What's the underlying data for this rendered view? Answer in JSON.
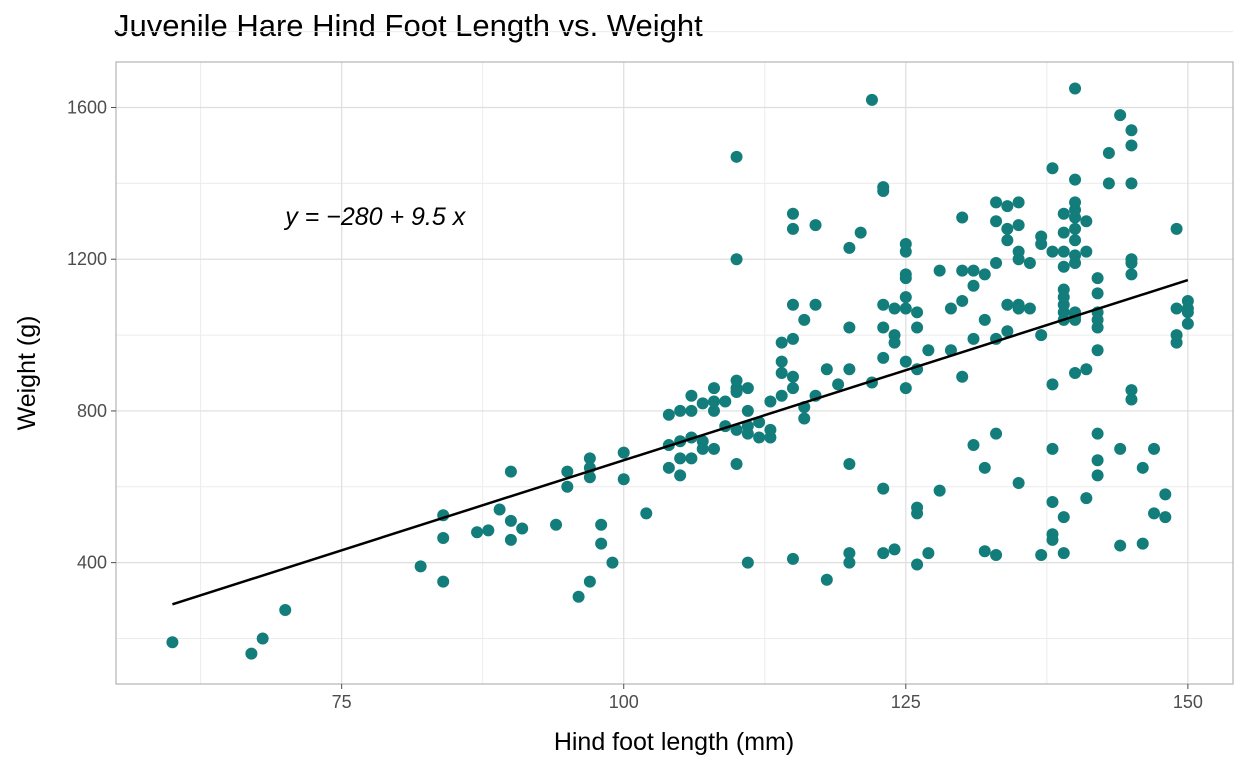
{
  "chart_data": {
    "type": "scatter",
    "title": "Juvenile Hare Hind Foot Length vs. Weight",
    "xlabel": "Hind foot length (mm)",
    "ylabel": "Weight (g)",
    "xlim": [
      55,
      154
    ],
    "ylim": [
      80,
      1720
    ],
    "xticks": [
      75,
      100,
      125,
      150
    ],
    "yticks": [
      400,
      800,
      1200,
      1600
    ],
    "xtick_labels": [
      "75",
      "100",
      "125",
      "150"
    ],
    "ytick_labels": [
      "400",
      "800",
      "1200",
      "1600"
    ],
    "grid": true,
    "point_color": "#127d7a",
    "line_color": "#000000",
    "regression": {
      "intercept": -280,
      "slope": 9.5,
      "x_range": [
        60,
        150
      ]
    },
    "annotation": {
      "text": "y = −280 + 9.5 x",
      "x": 70,
      "y": 1290
    },
    "points": [
      [
        60,
        190
      ],
      [
        67,
        160
      ],
      [
        68,
        200
      ],
      [
        70,
        275
      ],
      [
        82,
        390
      ],
      [
        84,
        350
      ],
      [
        84,
        465
      ],
      [
        84,
        525
      ],
      [
        87,
        480
      ],
      [
        88,
        485
      ],
      [
        89,
        540
      ],
      [
        90,
        460
      ],
      [
        90,
        510
      ],
      [
        90,
        640
      ],
      [
        91,
        490
      ],
      [
        94,
        500
      ],
      [
        95,
        600
      ],
      [
        95,
        640
      ],
      [
        96,
        310
      ],
      [
        97,
        350
      ],
      [
        97,
        625
      ],
      [
        97,
        650
      ],
      [
        97,
        675
      ],
      [
        98,
        450
      ],
      [
        98,
        500
      ],
      [
        99,
        400
      ],
      [
        100,
        620
      ],
      [
        100,
        690
      ],
      [
        102,
        530
      ],
      [
        104,
        650
      ],
      [
        104,
        710
      ],
      [
        104,
        790
      ],
      [
        105,
        630
      ],
      [
        105,
        675
      ],
      [
        105,
        720
      ],
      [
        105,
        800
      ],
      [
        106,
        675
      ],
      [
        106,
        730
      ],
      [
        106,
        800
      ],
      [
        106,
        840
      ],
      [
        107,
        700
      ],
      [
        107,
        720
      ],
      [
        107,
        820
      ],
      [
        108,
        700
      ],
      [
        108,
        800
      ],
      [
        108,
        825
      ],
      [
        108,
        860
      ],
      [
        109,
        760
      ],
      [
        109,
        825
      ],
      [
        110,
        660
      ],
      [
        110,
        750
      ],
      [
        110,
        850
      ],
      [
        110,
        860
      ],
      [
        110,
        880
      ],
      [
        110,
        1200
      ],
      [
        110,
        1470
      ],
      [
        111,
        400
      ],
      [
        111,
        740
      ],
      [
        111,
        760
      ],
      [
        111,
        800
      ],
      [
        111,
        860
      ],
      [
        112,
        730
      ],
      [
        112,
        770
      ],
      [
        113,
        730
      ],
      [
        113,
        750
      ],
      [
        113,
        825
      ],
      [
        114,
        840
      ],
      [
        114,
        900
      ],
      [
        114,
        930
      ],
      [
        114,
        980
      ],
      [
        115,
        410
      ],
      [
        115,
        860
      ],
      [
        115,
        890
      ],
      [
        115,
        990
      ],
      [
        115,
        1080
      ],
      [
        115,
        1280
      ],
      [
        115,
        1320
      ],
      [
        116,
        780
      ],
      [
        116,
        810
      ],
      [
        116,
        1040
      ],
      [
        117,
        840
      ],
      [
        117,
        1080
      ],
      [
        117,
        1290
      ],
      [
        118,
        355
      ],
      [
        118,
        910
      ],
      [
        119,
        870
      ],
      [
        120,
        400
      ],
      [
        120,
        425
      ],
      [
        120,
        660
      ],
      [
        120,
        910
      ],
      [
        120,
        1020
      ],
      [
        120,
        1230
      ],
      [
        121,
        1270
      ],
      [
        122,
        875
      ],
      [
        122,
        1620
      ],
      [
        123,
        425
      ],
      [
        123,
        595
      ],
      [
        123,
        940
      ],
      [
        123,
        1020
      ],
      [
        123,
        1080
      ],
      [
        123,
        1380
      ],
      [
        123,
        1390
      ],
      [
        124,
        435
      ],
      [
        124,
        980
      ],
      [
        124,
        1000
      ],
      [
        124,
        1070
      ],
      [
        125,
        860
      ],
      [
        125,
        930
      ],
      [
        125,
        1070
      ],
      [
        125,
        1100
      ],
      [
        125,
        1150
      ],
      [
        125,
        1160
      ],
      [
        125,
        1220
      ],
      [
        125,
        1240
      ],
      [
        126,
        395
      ],
      [
        126,
        530
      ],
      [
        126,
        545
      ],
      [
        126,
        910
      ],
      [
        126,
        1020
      ],
      [
        126,
        1060
      ],
      [
        127,
        425
      ],
      [
        127,
        960
      ],
      [
        128,
        590
      ],
      [
        128,
        1170
      ],
      [
        129,
        960
      ],
      [
        129,
        1070
      ],
      [
        130,
        890
      ],
      [
        130,
        1090
      ],
      [
        130,
        1170
      ],
      [
        130,
        1310
      ],
      [
        131,
        710
      ],
      [
        131,
        990
      ],
      [
        131,
        1130
      ],
      [
        131,
        1170
      ],
      [
        132,
        430
      ],
      [
        132,
        650
      ],
      [
        132,
        1040
      ],
      [
        132,
        1160
      ],
      [
        133,
        420
      ],
      [
        133,
        740
      ],
      [
        133,
        990
      ],
      [
        133,
        1190
      ],
      [
        133,
        1300
      ],
      [
        133,
        1350
      ],
      [
        134,
        1010
      ],
      [
        134,
        1080
      ],
      [
        134,
        1250
      ],
      [
        134,
        1280
      ],
      [
        134,
        1340
      ],
      [
        135,
        610
      ],
      [
        135,
        1070
      ],
      [
        135,
        1080
      ],
      [
        135,
        1200
      ],
      [
        135,
        1220
      ],
      [
        135,
        1290
      ],
      [
        135,
        1350
      ],
      [
        136,
        1070
      ],
      [
        136,
        1190
      ],
      [
        137,
        420
      ],
      [
        137,
        1000
      ],
      [
        137,
        1240
      ],
      [
        137,
        1260
      ],
      [
        138,
        460
      ],
      [
        138,
        475
      ],
      [
        138,
        560
      ],
      [
        138,
        700
      ],
      [
        138,
        870
      ],
      [
        138,
        1220
      ],
      [
        138,
        1440
      ],
      [
        139,
        425
      ],
      [
        139,
        520
      ],
      [
        139,
        1040
      ],
      [
        139,
        1060
      ],
      [
        139,
        1080
      ],
      [
        139,
        1100
      ],
      [
        139,
        1120
      ],
      [
        139,
        1180
      ],
      [
        139,
        1220
      ],
      [
        139,
        1270
      ],
      [
        139,
        1320
      ],
      [
        140,
        900
      ],
      [
        140,
        1040
      ],
      [
        140,
        1050
      ],
      [
        140,
        1060
      ],
      [
        140,
        1190
      ],
      [
        140,
        1210
      ],
      [
        140,
        1250
      ],
      [
        140,
        1280
      ],
      [
        140,
        1310
      ],
      [
        140,
        1330
      ],
      [
        140,
        1350
      ],
      [
        140,
        1410
      ],
      [
        140,
        1650
      ],
      [
        141,
        570
      ],
      [
        141,
        910
      ],
      [
        141,
        1220
      ],
      [
        141,
        1300
      ],
      [
        142,
        630
      ],
      [
        142,
        670
      ],
      [
        142,
        740
      ],
      [
        142,
        960
      ],
      [
        142,
        1020
      ],
      [
        142,
        1040
      ],
      [
        142,
        1060
      ],
      [
        142,
        1110
      ],
      [
        142,
        1150
      ],
      [
        143,
        1400
      ],
      [
        143,
        1480
      ],
      [
        144,
        445
      ],
      [
        144,
        700
      ],
      [
        144,
        1580
      ],
      [
        145,
        830
      ],
      [
        145,
        855
      ],
      [
        145,
        1160
      ],
      [
        145,
        1190
      ],
      [
        145,
        1200
      ],
      [
        145,
        1400
      ],
      [
        145,
        1500
      ],
      [
        145,
        1540
      ],
      [
        146,
        450
      ],
      [
        146,
        650
      ],
      [
        147,
        530
      ],
      [
        147,
        700
      ],
      [
        148,
        520
      ],
      [
        148,
        580
      ],
      [
        149,
        980
      ],
      [
        149,
        1000
      ],
      [
        149,
        1070
      ],
      [
        149,
        1280
      ],
      [
        150,
        1030
      ],
      [
        150,
        1060
      ],
      [
        150,
        1070
      ],
      [
        150,
        1090
      ]
    ]
  }
}
